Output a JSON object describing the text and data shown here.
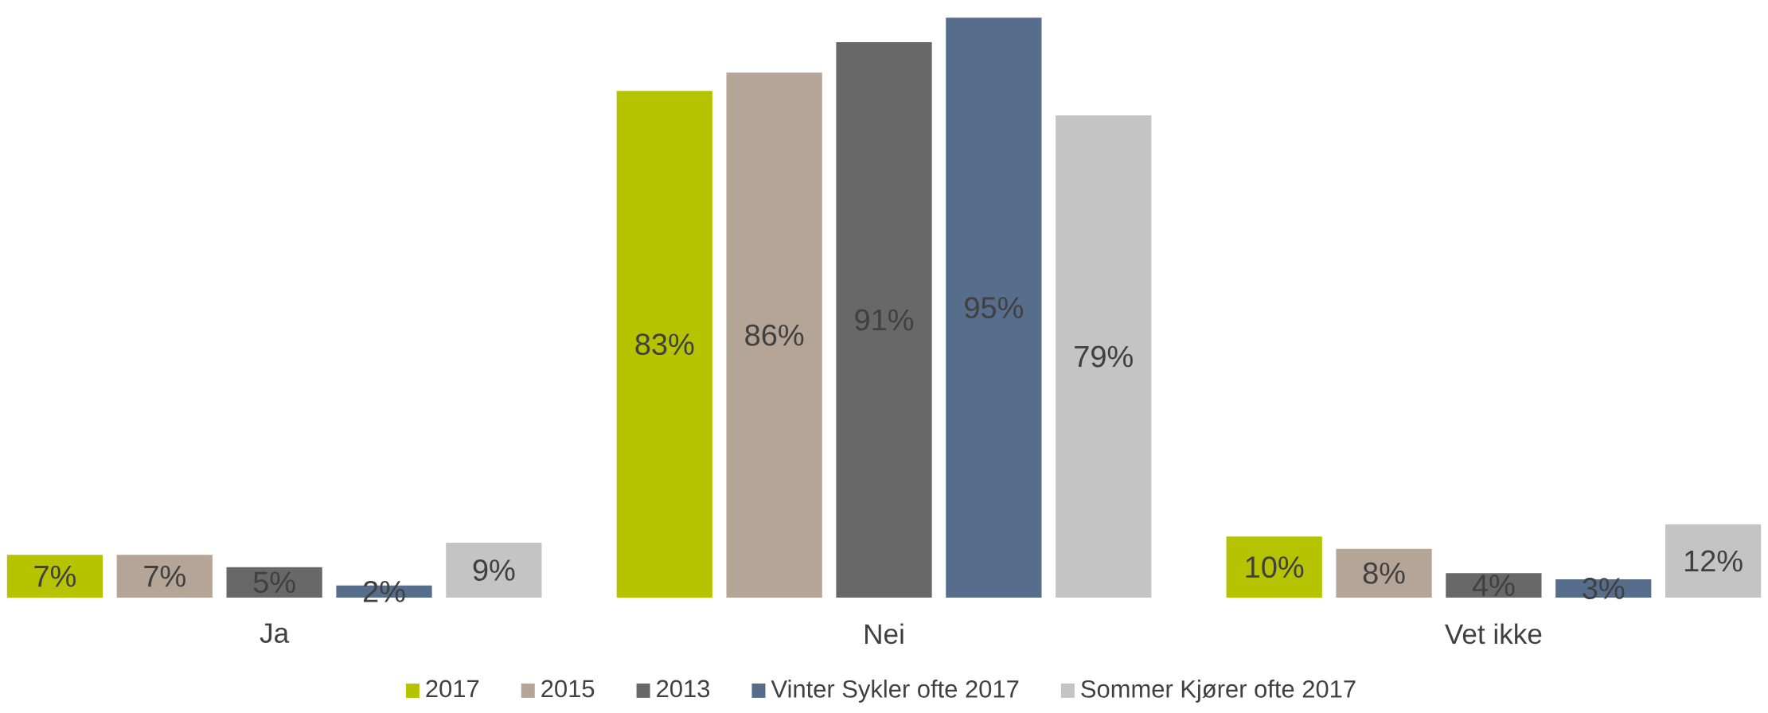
{
  "chart_data": {
    "type": "bar",
    "categories": [
      "Ja",
      "Nei",
      "Vet ikke"
    ],
    "series": [
      {
        "name": "2017",
        "color": "#b5c300",
        "values": [
          7,
          83,
          10
        ],
        "value_labels": [
          "7%",
          "83%",
          "10%"
        ]
      },
      {
        "name": "2015",
        "color": "#b5a597",
        "values": [
          7,
          86,
          8
        ],
        "value_labels": [
          "7%",
          "86%",
          "8%"
        ]
      },
      {
        "name": "2013",
        "color": "#686868",
        "values": [
          5,
          91,
          4
        ],
        "value_labels": [
          "5%",
          "91%",
          "4%"
        ]
      },
      {
        "name": "Vinter Sykler ofte 2017",
        "color": "#566d8c",
        "values": [
          2,
          95,
          3
        ],
        "value_labels": [
          "2%",
          "95%",
          "3%"
        ]
      },
      {
        "name": "Sommer Kjører ofte 2017",
        "color": "#c4c4c4",
        "values": [
          9,
          79,
          12
        ],
        "value_labels": [
          "9%",
          "79%",
          "12%"
        ]
      }
    ],
    "legend": "bottom"
  }
}
